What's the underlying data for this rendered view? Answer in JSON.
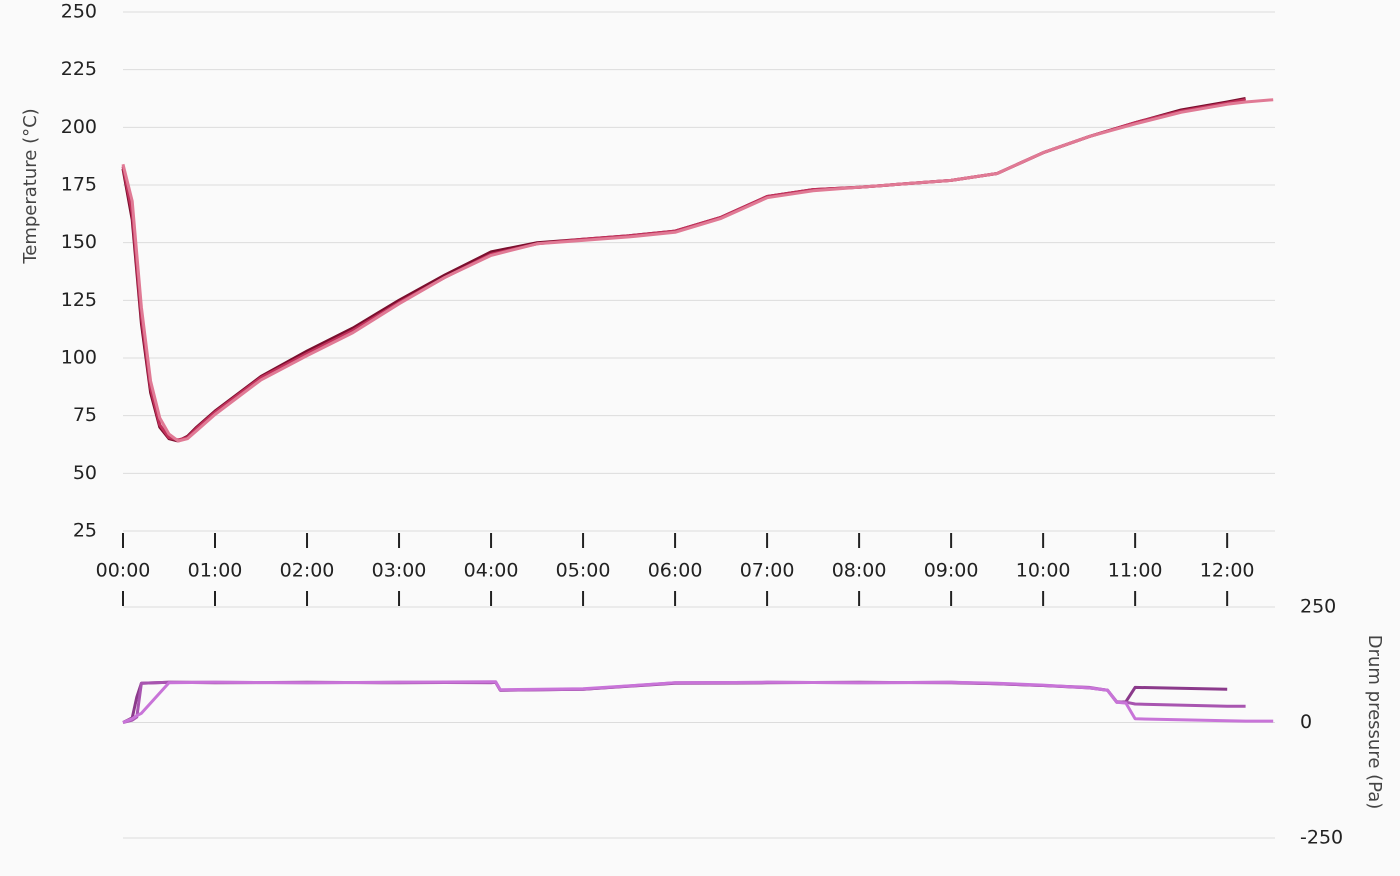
{
  "chart_data": [
    {
      "type": "line",
      "ylabel": "Temperature (°C)",
      "grid": true,
      "x": [
        0,
        0.1,
        0.2,
        0.3,
        0.4,
        0.5,
        0.6,
        0.7,
        0.8,
        1,
        1.5,
        2,
        2.5,
        3,
        3.5,
        4,
        4.5,
        5,
        5.5,
        6,
        6.5,
        7,
        7.5,
        8,
        8.5,
        9,
        9.5,
        10,
        10.5,
        11,
        11.5,
        12,
        12.2,
        12.5
      ],
      "series": [
        {
          "color": "#7a0f2e",
          "values": [
            182,
            160,
            115,
            85,
            70,
            65,
            64,
            66,
            70,
            77,
            92,
            103,
            113,
            125,
            136,
            146,
            150,
            151.5,
            153,
            155,
            161,
            170,
            173,
            174,
            175.5,
            177,
            180,
            189,
            196,
            202,
            207.5,
            211,
            212.5,
            null
          ]
        },
        {
          "color": "#c0305a",
          "values": [
            183,
            163,
            118,
            87,
            71,
            65.5,
            64.5,
            65.5,
            69.5,
            76.5,
            91.5,
            102,
            112,
            124,
            135,
            145,
            149.5,
            151.5,
            153,
            155,
            161,
            170,
            173,
            174,
            175.5,
            177,
            180,
            189,
            196,
            202,
            207,
            210.5,
            212,
            null
          ]
        },
        {
          "color": "#e07a95",
          "values": [
            184,
            168,
            122,
            90,
            74,
            67,
            64,
            65,
            68.5,
            75.5,
            90.5,
            101,
            111,
            123.5,
            135,
            144.5,
            149.5,
            151,
            152.5,
            154.5,
            160.5,
            169.5,
            172.5,
            174,
            175.5,
            177,
            180,
            189,
            196,
            201.5,
            206.5,
            210,
            211,
            212
          ]
        }
      ],
      "xlim": [
        0,
        12.52
      ],
      "xticks": [
        {
          "value": 0,
          "label": "00:00"
        },
        {
          "value": 1,
          "label": "01:00"
        },
        {
          "value": 2,
          "label": "02:00"
        },
        {
          "value": 3,
          "label": "03:00"
        },
        {
          "value": 4,
          "label": "04:00"
        },
        {
          "value": 5,
          "label": "05:00"
        },
        {
          "value": 6,
          "label": "06:00"
        },
        {
          "value": 7,
          "label": "07:00"
        },
        {
          "value": 8,
          "label": "08:00"
        },
        {
          "value": 9,
          "label": "09:00"
        },
        {
          "value": 10,
          "label": "10:00"
        },
        {
          "value": 11,
          "label": "11:00"
        },
        {
          "value": 12,
          "label": "12:00"
        }
      ],
      "ylim": [
        25,
        250
      ],
      "yticks": [
        25,
        50,
        75,
        100,
        125,
        150,
        175,
        200,
        225,
        250
      ]
    },
    {
      "type": "line",
      "ylabel": "Drum pressure (Pa)",
      "yaxis_side": "right",
      "grid": true,
      "x": [
        0,
        0.1,
        0.15,
        0.2,
        0.5,
        1,
        2,
        3,
        4,
        4.05,
        4.1,
        5,
        6,
        7,
        8,
        9,
        9.5,
        10,
        10.5,
        10.7,
        10.8,
        10.9,
        11,
        12,
        12.2,
        12.5
      ],
      "series": [
        {
          "color": "#8b3a8b",
          "values": [
            0,
            10,
            55,
            85,
            87,
            86,
            87,
            86,
            87,
            87,
            70,
            72,
            85,
            86,
            87,
            86,
            84,
            80,
            75,
            70,
            44,
            45,
            76,
            72,
            null,
            null
          ]
        },
        {
          "color": "#a855b0",
          "values": [
            0,
            5,
            12,
            85,
            87,
            87,
            86,
            87,
            86,
            87,
            70,
            72,
            86,
            87,
            86,
            87,
            84,
            80,
            76,
            70,
            45,
            44,
            40,
            35,
            35,
            null
          ]
        },
        {
          "color": "#c874d8",
          "values": [
            0,
            8,
            15,
            20,
            86,
            87,
            86,
            87,
            88,
            88,
            71,
            73,
            86,
            87,
            86,
            87,
            85,
            81,
            75,
            70,
            44,
            42,
            8,
            4,
            3,
            3
          ]
        }
      ],
      "ylim": [
        -250,
        250
      ],
      "yticks": [
        -250,
        0,
        250
      ]
    }
  ]
}
